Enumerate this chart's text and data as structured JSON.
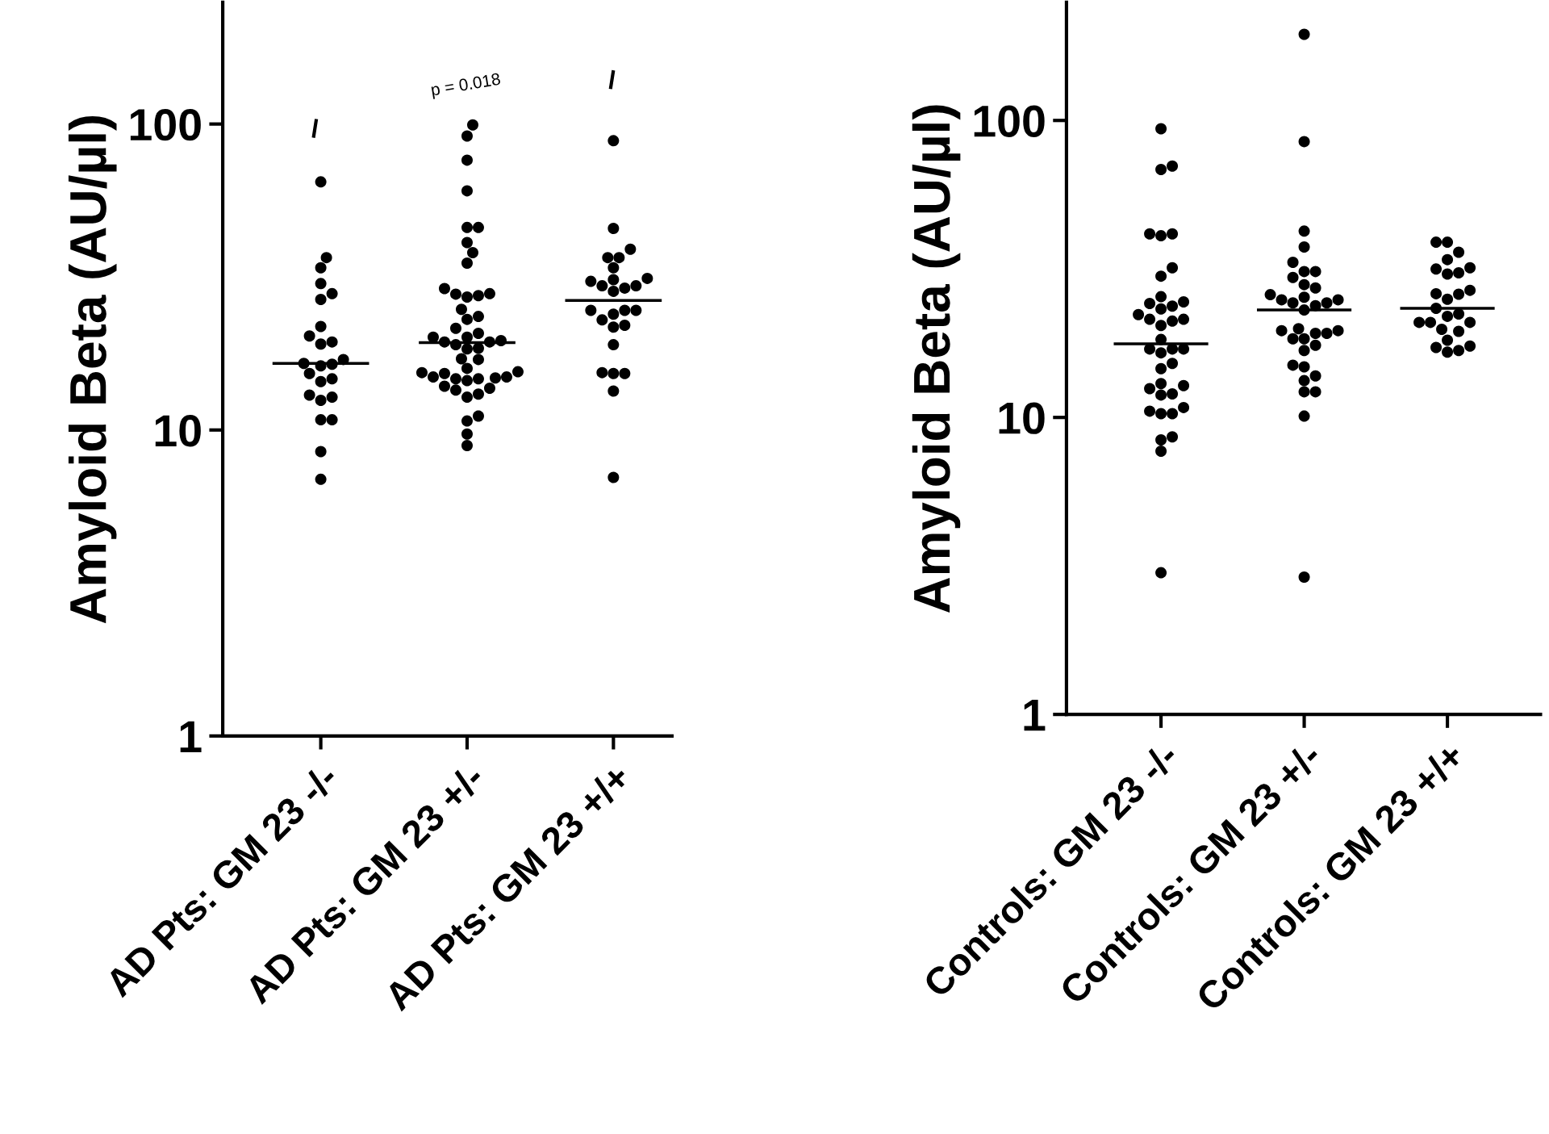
{
  "chart_data": [
    {
      "type": "scatter",
      "categories": [
        "AD Pts: GM 23 -/-",
        "AD Pts: GM 23 +/-",
        "AD Pts: GM 23 +/+"
      ],
      "ylabel": "Amyloid Beta (AU/µl)",
      "log": "y",
      "ylim": [
        1,
        250
      ],
      "yticks": [
        1,
        10,
        100
      ],
      "marker": "circle",
      "annotations": [
        "p = 0.018"
      ],
      "ref_lines": [
        {
          "axis": "y",
          "value": 16.5
        },
        {
          "axis": "y",
          "value": 19.3
        },
        {
          "axis": "y",
          "value": 26.5
        }
      ],
      "series": [
        {
          "type": "scatter",
          "color": "#000000",
          "x": [
            "AD Pts: GM 23 -/-",
            "AD Pts: GM 23 -/-",
            "AD Pts: GM 23 -/-",
            "AD Pts: GM 23 -/-",
            "AD Pts: GM 23 -/-",
            "AD Pts: GM 23 -/-",
            "AD Pts: GM 23 -/-",
            "AD Pts: GM 23 -/-",
            "AD Pts: GM 23 -/-",
            "AD Pts: GM 23 -/-",
            "AD Pts: GM 23 -/-",
            "AD Pts: GM 23 -/-",
            "AD Pts: GM 23 -/-",
            "AD Pts: GM 23 -/-",
            "AD Pts: GM 23 -/-",
            "AD Pts: GM 23 -/-",
            "AD Pts: GM 23 -/-",
            "AD Pts: GM 23 -/-",
            "AD Pts: GM 23 -/-",
            "AD Pts: GM 23 -/-",
            "AD Pts: GM 23 -/-",
            "AD Pts: GM 23 -/-",
            "AD Pts: GM 23 -/-",
            "AD Pts: GM 23 -/-"
          ],
          "values": [
            64.7,
            36.6,
            33.9,
            30.1,
            27.9,
            26.7,
            21.8,
            20.3,
            19.4,
            19.1,
            17.0,
            16.5,
            16.4,
            16.2,
            15.3,
            14.7,
            14.4,
            13.0,
            12.8,
            12.5,
            10.8,
            10.8,
            8.5,
            6.9
          ]
        },
        {
          "type": "scatter",
          "color": "#000000",
          "x": [
            "AD Pts: GM 23 +/-",
            "AD Pts: GM 23 +/-",
            "AD Pts: GM 23 +/-",
            "AD Pts: GM 23 +/-",
            "AD Pts: GM 23 +/-",
            "AD Pts: GM 23 +/-",
            "AD Pts: GM 23 +/-",
            "AD Pts: GM 23 +/-",
            "AD Pts: GM 23 +/-",
            "AD Pts: GM 23 +/-",
            "AD Pts: GM 23 +/-",
            "AD Pts: GM 23 +/-",
            "AD Pts: GM 23 +/-",
            "AD Pts: GM 23 +/-",
            "AD Pts: GM 23 +/-",
            "AD Pts: GM 23 +/-",
            "AD Pts: GM 23 +/-",
            "AD Pts: GM 23 +/-",
            "AD Pts: GM 23 +/-",
            "AD Pts: GM 23 +/-",
            "AD Pts: GM 23 +/-",
            "AD Pts: GM 23 +/-",
            "AD Pts: GM 23 +/-",
            "AD Pts: GM 23 +/-",
            "AD Pts: GM 23 +/-",
            "AD Pts: GM 23 +/-",
            "AD Pts: GM 23 +/-",
            "AD Pts: GM 23 +/-",
            "AD Pts: GM 23 +/-",
            "AD Pts: GM 23 +/-",
            "AD Pts: GM 23 +/-",
            "AD Pts: GM 23 +/-",
            "AD Pts: GM 23 +/-",
            "AD Pts: GM 23 +/-",
            "AD Pts: GM 23 +/-",
            "AD Pts: GM 23 +/-",
            "AD Pts: GM 23 +/-",
            "AD Pts: GM 23 +/-",
            "AD Pts: GM 23 +/-",
            "AD Pts: GM 23 +/-",
            "AD Pts: GM 23 +/-",
            "AD Pts: GM 23 +/-",
            "AD Pts: GM 23 +/-",
            "AD Pts: GM 23 +/-",
            "AD Pts: GM 23 +/-",
            "AD Pts: GM 23 +/-",
            "AD Pts: GM 23 +/-",
            "AD Pts: GM 23 +/-"
          ],
          "values": [
            99.3,
            91.4,
            76.2,
            60.5,
            45.9,
            45.9,
            41.0,
            38.0,
            35.1,
            29.0,
            27.9,
            27.8,
            27.5,
            27.2,
            24.8,
            23.5,
            23.0,
            21.5,
            20.7,
            20.1,
            20.1,
            19.6,
            19.4,
            19.4,
            19.0,
            18.5,
            18.4,
            17.1,
            17.0,
            15.9,
            15.5,
            15.4,
            15.3,
            14.8,
            14.9,
            14.9,
            14.7,
            14.7,
            14.5,
            13.9,
            13.7,
            13.5,
            13.1,
            12.8,
            11.1,
            10.7,
            9.7,
            8.9
          ]
        },
        {
          "type": "scatter",
          "color": "#000000",
          "x": [
            "AD Pts: GM 23 +/+",
            "AD Pts: GM 23 +/+",
            "AD Pts: GM 23 +/+",
            "AD Pts: GM 23 +/+",
            "AD Pts: GM 23 +/+",
            "AD Pts: GM 23 +/+",
            "AD Pts: GM 23 +/+",
            "AD Pts: GM 23 +/+",
            "AD Pts: GM 23 +/+",
            "AD Pts: GM 23 +/+",
            "AD Pts: GM 23 +/+",
            "AD Pts: GM 23 +/+",
            "AD Pts: GM 23 +/+",
            "AD Pts: GM 23 +/+",
            "AD Pts: GM 23 +/+",
            "AD Pts: GM 23 +/+",
            "AD Pts: GM 23 +/+",
            "AD Pts: GM 23 +/+",
            "AD Pts: GM 23 +/+",
            "AD Pts: GM 23 +/+",
            "AD Pts: GM 23 +/+",
            "AD Pts: GM 23 +/+",
            "AD Pts: GM 23 +/+",
            "AD Pts: GM 23 +/+",
            "AD Pts: GM 23 +/+",
            "AD Pts: GM 23 +/+"
          ],
          "values": [
            88.2,
            45.6,
            39.0,
            36.6,
            36.6,
            33.9,
            31.3,
            31.0,
            30.6,
            29.6,
            29.6,
            29.1,
            28.4,
            24.6,
            24.6,
            24.6,
            23.9,
            22.9,
            22.0,
            21.7,
            19.0,
            15.4,
            15.3,
            15.3,
            13.4,
            7.0
          ]
        }
      ]
    },
    {
      "type": "scatter",
      "categories": [
        "Controls: GM 23 -/-",
        "Controls: GM 23 +/-",
        "Controls: GM 23 +/+"
      ],
      "ylabel": "Amyloid Beta (AU/µl)",
      "log": "y",
      "ylim": [
        1,
        250
      ],
      "yticks": [
        1,
        10,
        100
      ],
      "marker": "circle",
      "ref_lines": [
        {
          "axis": "y",
          "value": 17.7
        },
        {
          "axis": "y",
          "value": 23.0
        },
        {
          "axis": "y",
          "value": 23.3
        }
      ],
      "series": [
        {
          "type": "scatter",
          "color": "#000000",
          "x": [
            "Controls: GM 23 -/-",
            "Controls: GM 23 -/-",
            "Controls: GM 23 -/-",
            "Controls: GM 23 -/-",
            "Controls: GM 23 -/-",
            "Controls: GM 23 -/-",
            "Controls: GM 23 -/-",
            "Controls: GM 23 -/-",
            "Controls: GM 23 -/-",
            "Controls: GM 23 -/-",
            "Controls: GM 23 -/-",
            "Controls: GM 23 -/-",
            "Controls: GM 23 -/-",
            "Controls: GM 23 -/-",
            "Controls: GM 23 -/-",
            "Controls: GM 23 -/-",
            "Controls: GM 23 -/-",
            "Controls: GM 23 -/-",
            "Controls: GM 23 -/-",
            "Controls: GM 23 -/-",
            "Controls: GM 23 -/-",
            "Controls: GM 23 -/-",
            "Controls: GM 23 -/-",
            "Controls: GM 23 -/-",
            "Controls: GM 23 -/-",
            "Controls: GM 23 -/-",
            "Controls: GM 23 -/-",
            "Controls: GM 23 -/-",
            "Controls: GM 23 -/-",
            "Controls: GM 23 -/-",
            "Controls: GM 23 -/-",
            "Controls: GM 23 -/-",
            "Controls: GM 23 -/-",
            "Controls: GM 23 -/-",
            "Controls: GM 23 -/-",
            "Controls: GM 23 -/-",
            "Controls: GM 23 -/-",
            "Controls: GM 23 -/-"
          ],
          "values": [
            93.8,
            70.2,
            68.4,
            41.5,
            41.5,
            40.9,
            31.9,
            29.9,
            25.5,
            24.5,
            24.2,
            23.7,
            23.2,
            22.2,
            21.4,
            21.4,
            21.1,
            20.4,
            18.3,
            17.0,
            17.0,
            17.0,
            16.5,
            15.2,
            14.6,
            13.0,
            12.8,
            12.5,
            12.0,
            11.9,
            10.8,
            10.5,
            10.3,
            10.3,
            8.6,
            8.4,
            7.7,
            3.0
          ]
        },
        {
          "type": "scatter",
          "color": "#000000",
          "x": [
            "Controls: GM 23 +/-",
            "Controls: GM 23 +/-",
            "Controls: GM 23 +/-",
            "Controls: GM 23 +/-",
            "Controls: GM 23 +/-",
            "Controls: GM 23 +/-",
            "Controls: GM 23 +/-",
            "Controls: GM 23 +/-",
            "Controls: GM 23 +/-",
            "Controls: GM 23 +/-",
            "Controls: GM 23 +/-",
            "Controls: GM 23 +/-",
            "Controls: GM 23 +/-",
            "Controls: GM 23 +/-",
            "Controls: GM 23 +/-",
            "Controls: GM 23 +/-",
            "Controls: GM 23 +/-",
            "Controls: GM 23 +/-",
            "Controls: GM 23 +/-",
            "Controls: GM 23 +/-",
            "Controls: GM 23 +/-",
            "Controls: GM 23 +/-",
            "Controls: GM 23 +/-",
            "Controls: GM 23 +/-",
            "Controls: GM 23 +/-",
            "Controls: GM 23 +/-",
            "Controls: GM 23 +/-",
            "Controls: GM 23 +/-",
            "Controls: GM 23 +/-",
            "Controls: GM 23 +/-",
            "Controls: GM 23 +/-",
            "Controls: GM 23 +/-",
            "Controls: GM 23 +/-",
            "Controls: GM 23 +/-",
            "Controls: GM 23 +/-"
          ],
          "values": [
            195,
            84.9,
            42.4,
            37.5,
            33.3,
            31.0,
            31.0,
            29.6,
            28.0,
            27.3,
            25.9,
            25.4,
            24.9,
            24.9,
            24.3,
            24.3,
            23.8,
            23.0,
            19.9,
            19.6,
            19.6,
            19.2,
            19.2,
            18.4,
            18.4,
            17.5,
            16.8,
            15.0,
            14.8,
            13.8,
            13.3,
            12.2,
            12.2,
            10.1,
            2.9
          ]
        },
        {
          "type": "scatter",
          "color": "#000000",
          "x": [
            "Controls: GM 23 +/+",
            "Controls: GM 23 +/+",
            "Controls: GM 23 +/+",
            "Controls: GM 23 +/+",
            "Controls: GM 23 +/+",
            "Controls: GM 23 +/+",
            "Controls: GM 23 +/+",
            "Controls: GM 23 +/+",
            "Controls: GM 23 +/+",
            "Controls: GM 23 +/+",
            "Controls: GM 23 +/+",
            "Controls: GM 23 +/+",
            "Controls: GM 23 +/+",
            "Controls: GM 23 +/+",
            "Controls: GM 23 +/+",
            "Controls: GM 23 +/+",
            "Controls: GM 23 +/+",
            "Controls: GM 23 +/+",
            "Controls: GM 23 +/+",
            "Controls: GM 23 +/+",
            "Controls: GM 23 +/+",
            "Controls: GM 23 +/+",
            "Controls: GM 23 +/+",
            "Controls: GM 23 +/+",
            "Controls: GM 23 +/+"
          ],
          "values": [
            38.9,
            38.9,
            36.0,
            34.0,
            31.9,
            31.6,
            30.7,
            30.4,
            26.8,
            26.1,
            26.0,
            25.0,
            23.3,
            22.3,
            21.9,
            20.9,
            20.9,
            20.9,
            19.8,
            19.5,
            18.2,
            17.4,
            17.2,
            16.8,
            16.6
          ]
        }
      ]
    }
  ]
}
